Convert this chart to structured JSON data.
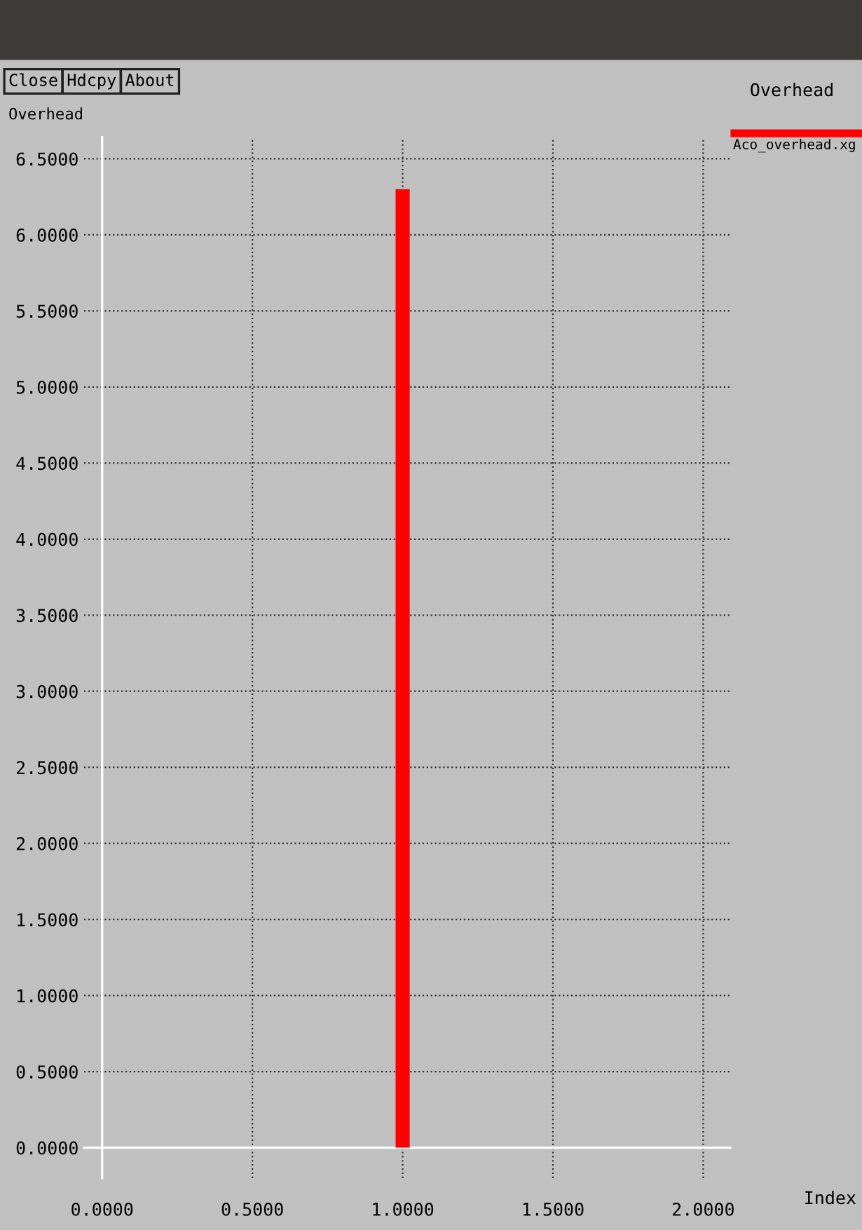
{
  "chart_data": {
    "type": "bar",
    "title": "Overhead",
    "ylabel": "Overhead",
    "xlabel": "Index",
    "annotations": [
      "Close",
      "Hdcpy",
      "About"
    ],
    "x": [
      1.0
    ],
    "series": [
      {
        "name": "Aco_overhead.xg",
        "color": "#ff0000",
        "values": [
          6.3
        ]
      }
    ],
    "xlim": [
      -0.06,
      2.09
    ],
    "ylim": [
      -0.2,
      6.64
    ],
    "xticks": [
      {
        "value": 0,
        "label": "0.0000"
      },
      {
        "value": 0.5,
        "label": "0.5000"
      },
      {
        "value": 1,
        "label": "1.0000"
      },
      {
        "value": 1.5,
        "label": "1.5000"
      },
      {
        "value": 2,
        "label": "2.0000"
      }
    ],
    "yticks": [
      {
        "value": 0,
        "label": "0.0000"
      },
      {
        "value": 0.5,
        "label": "0.5000"
      },
      {
        "value": 1,
        "label": "1.0000"
      },
      {
        "value": 1.5,
        "label": "1.5000"
      },
      {
        "value": 2,
        "label": "2.0000"
      },
      {
        "value": 2.5,
        "label": "2.5000"
      },
      {
        "value": 3,
        "label": "3.0000"
      },
      {
        "value": 3.5,
        "label": "3.5000"
      },
      {
        "value": 4,
        "label": "4.0000"
      },
      {
        "value": 4.5,
        "label": "4.5000"
      },
      {
        "value": 5,
        "label": "5.0000"
      },
      {
        "value": 5.5,
        "label": "5.5000"
      },
      {
        "value": 6,
        "label": "6.0000"
      },
      {
        "value": 6.5,
        "label": "6.5000"
      }
    ],
    "grid": true,
    "line_style": "dotted",
    "legend": "top right"
  }
}
